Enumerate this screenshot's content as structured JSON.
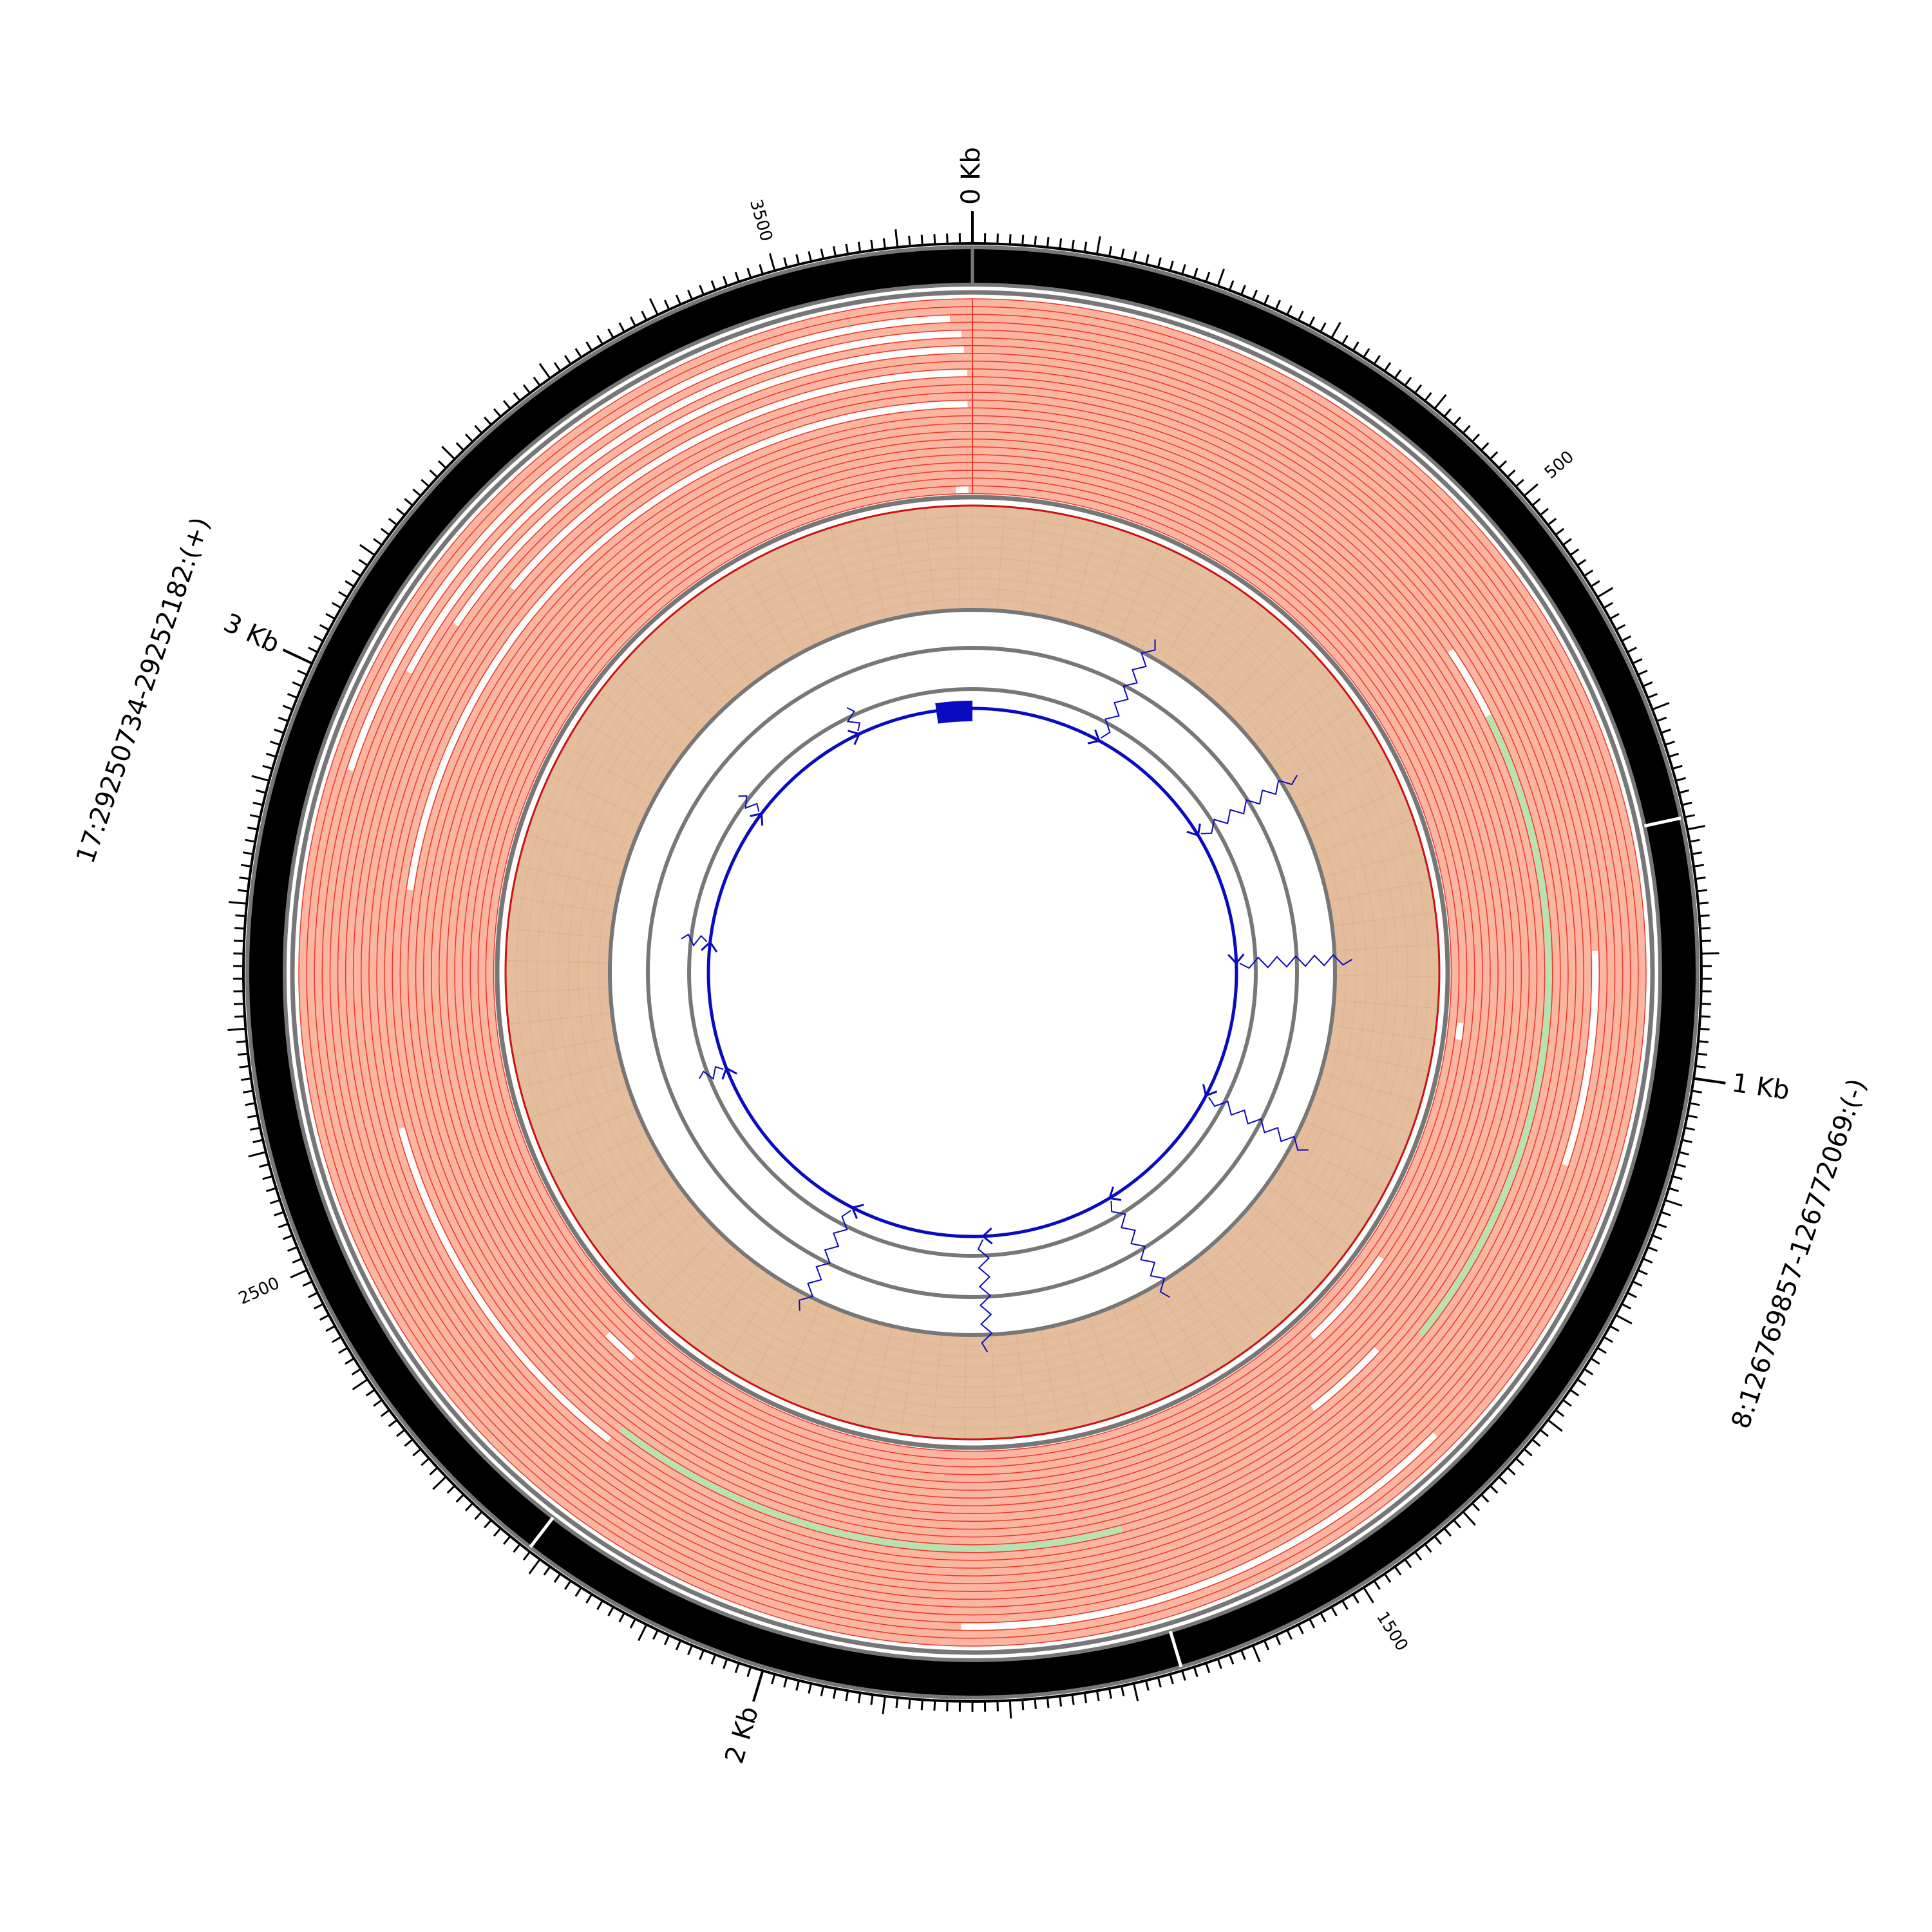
{
  "chart_data": {
    "type": "circular",
    "total_length_bp": 3660,
    "segments": [
      {
        "label": "8:126769857-126772069:(-)",
        "start": 0,
        "end": 2212
      },
      {
        "label": "17:29250734-29252182:(+)",
        "start": 2212,
        "end": 3660
      }
    ],
    "ideogram_boundaries_bp": [
      0,
      790,
      1660,
      2212
    ],
    "major_ticks": [
      {
        "bp": 0,
        "label": "0 Kb"
      },
      {
        "bp": 1000,
        "label": "1 Kb"
      },
      {
        "bp": 2000,
        "label": "2 Kb"
      },
      {
        "bp": 3000,
        "label": "3 Kb"
      }
    ],
    "minor_labels": [
      {
        "bp": 500,
        "label": "500"
      },
      {
        "bp": 1500,
        "label": "1500"
      },
      {
        "bp": 2500,
        "label": "2500"
      },
      {
        "bp": 3500,
        "label": "3500"
      }
    ],
    "tick_step_bp": 10,
    "mid_tick_step_bp": 100,
    "read_lanes": 25,
    "read_gaps": [
      {
        "lane": 2,
        "start": 2928,
        "end": 3640
      },
      {
        "lane": 4,
        "start": 3030,
        "end": 3650
      },
      {
        "lane": 6,
        "start": 3090,
        "end": 3652
      },
      {
        "lane": 9,
        "start": 3150,
        "end": 3655
      },
      {
        "lane": 13,
        "start": 2830,
        "end": 3655
      },
      {
        "lane": 24,
        "start": 3640,
        "end": 3655
      },
      {
        "lane": 10,
        "start": 2215,
        "end": 2590
      },
      {
        "lane": 20,
        "start": 2250,
        "end": 2290
      },
      {
        "lane": 12,
        "start": 570,
        "end": 646
      },
      {
        "lane": 6,
        "start": 895,
        "end": 1098
      },
      {
        "lane": 23,
        "start": 975,
        "end": 995
      },
      {
        "lane": 22,
        "start": 1270,
        "end": 1393
      },
      {
        "lane": 15,
        "start": 1352,
        "end": 1444
      },
      {
        "lane": 2,
        "start": 1372,
        "end": 1840
      }
    ],
    "read_highlights": [
      {
        "lane": 12,
        "start": 646,
        "end": 1310
      },
      {
        "lane": 12,
        "start": 1677,
        "end": 2212
      }
    ],
    "exon_block": {
      "start": 3580,
      "end": 3660
    },
    "junctions": [
      {
        "bp": 292,
        "long": true
      },
      {
        "bp": 597,
        "long": true
      },
      {
        "bp": 895,
        "long": true
      },
      {
        "bp": 1198,
        "long": true
      },
      {
        "bp": 1512,
        "long": true
      },
      {
        "bp": 1807,
        "long": true
      },
      {
        "bp": 2105,
        "long": true
      },
      {
        "bp": 2529,
        "long": false
      },
      {
        "bp": 2812,
        "long": false
      },
      {
        "bp": 3121,
        "long": false
      },
      {
        "bp": 3402,
        "long": false
      }
    ],
    "colors": {
      "ideogram": "#000000",
      "ring_outline": "#777777",
      "reads_fill": "#fbb5a0",
      "reads_line": "#e8392a",
      "highlight": "#b8e3b0",
      "coverage_fill": "#e3bd9c",
      "coverage_outline": "#cc1111",
      "transcript": "#0a0ac0"
    }
  }
}
